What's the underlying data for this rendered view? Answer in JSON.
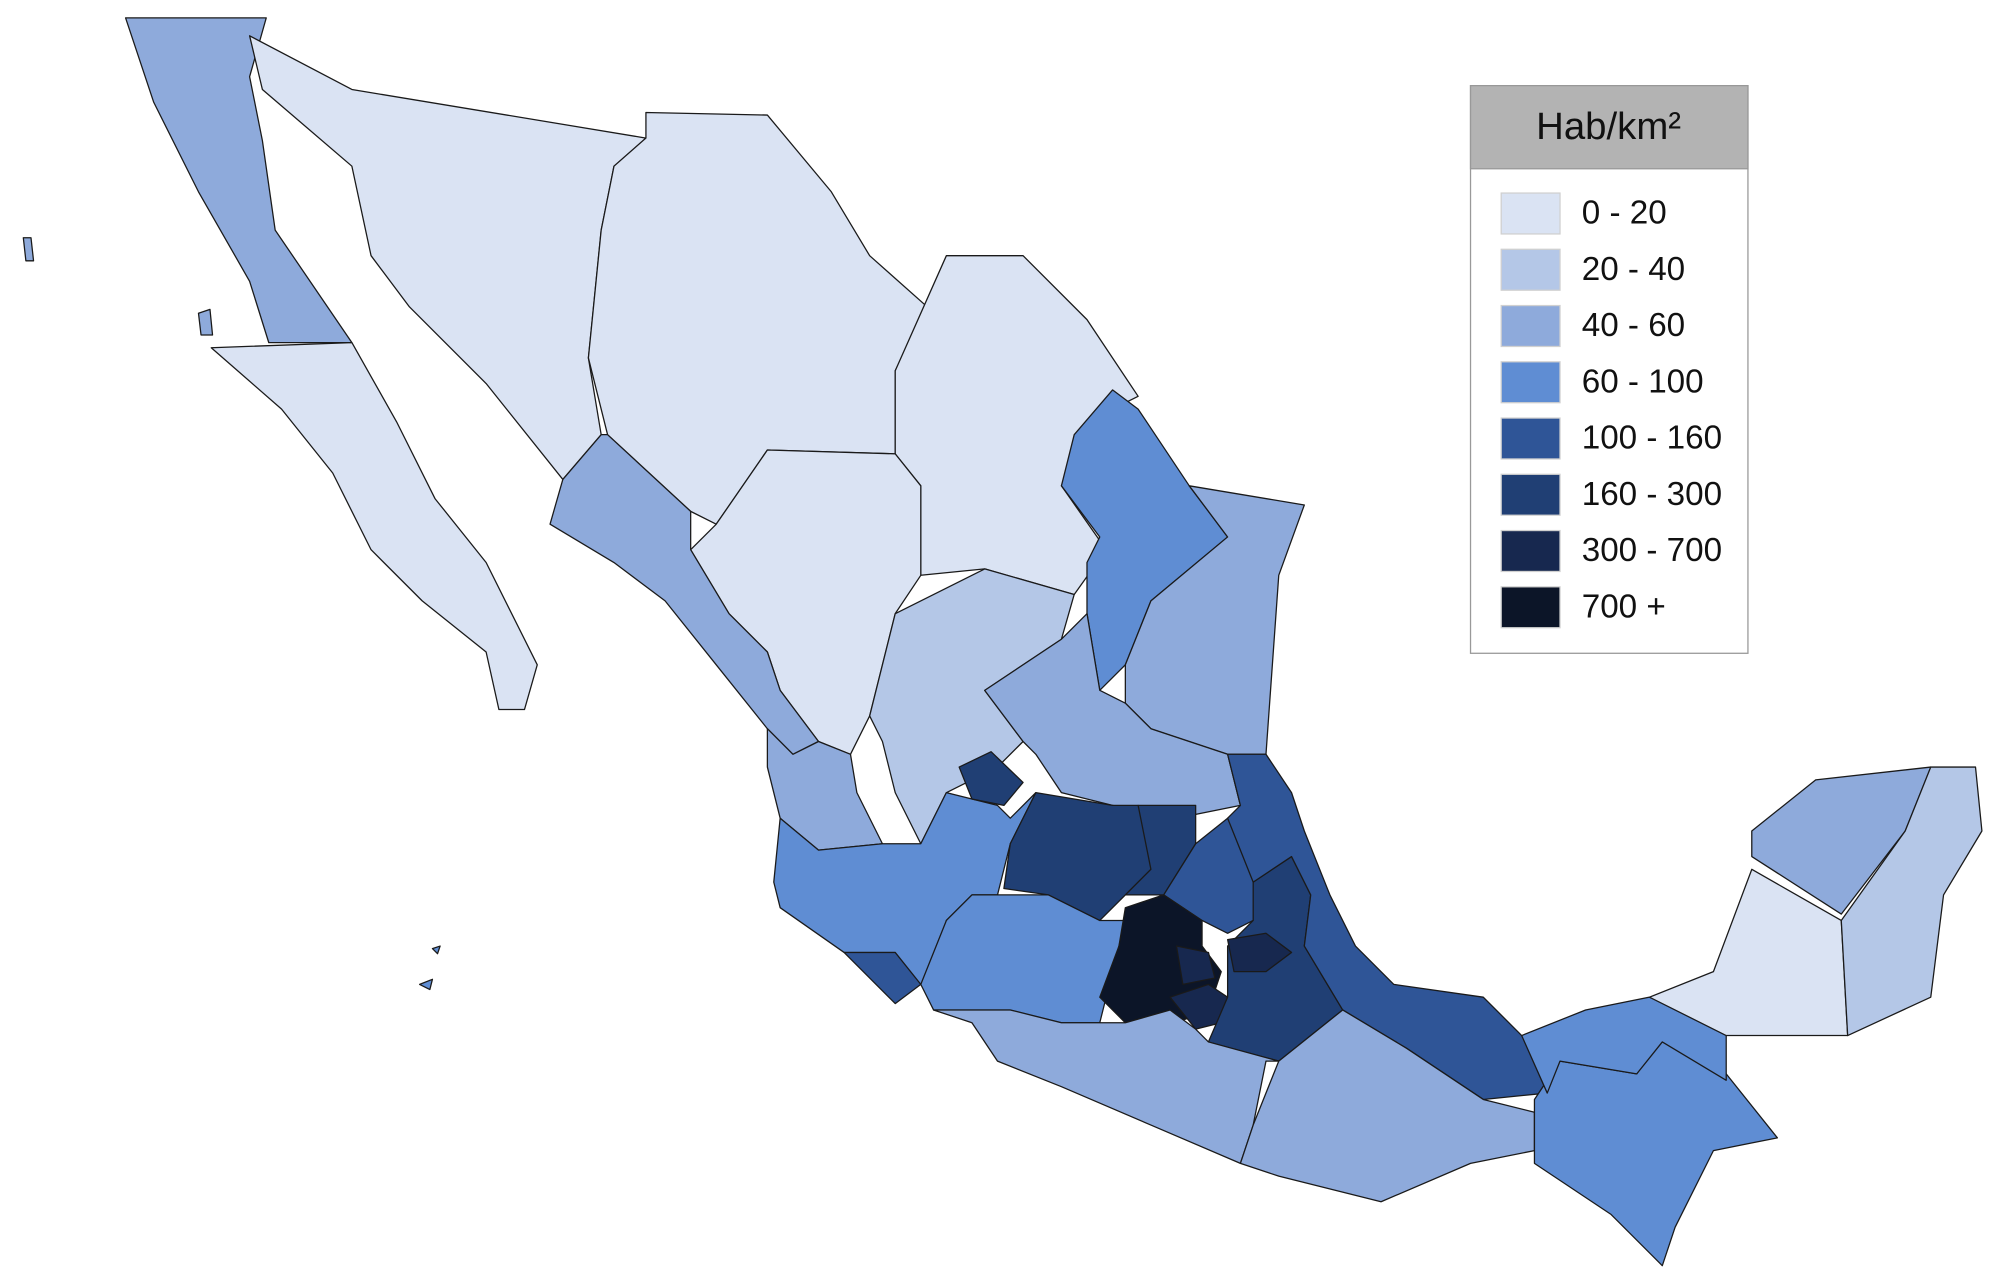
{
  "legend": {
    "title": "Hab/km²",
    "items": [
      {
        "label": "0 - 20",
        "color": "#dae3f3"
      },
      {
        "label": "20 - 40",
        "color": "#b4c7e7"
      },
      {
        "label": "40 - 60",
        "color": "#8eaadb"
      },
      {
        "label": "60 - 100",
        "color": "#5f8dd3"
      },
      {
        "label": "100 - 160",
        "color": "#2f5597"
      },
      {
        "label": "160 - 300",
        "color": "#203f74"
      },
      {
        "label": "300 - 700",
        "color": "#17284f"
      },
      {
        "label": "700 +",
        "color": "#0c1528"
      }
    ]
  }
}
